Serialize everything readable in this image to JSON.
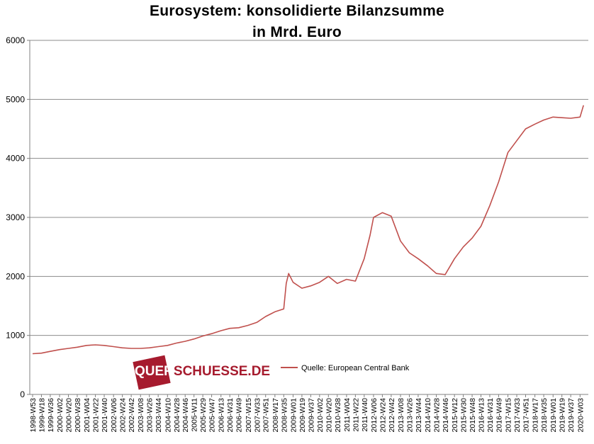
{
  "chart_data": {
    "type": "line",
    "title": "Eurosystem: konsolidierte Bilanzsumme",
    "subtitle": "in Mrd. Euro",
    "xlabel": "",
    "ylabel": "",
    "ylim": [
      0,
      6000
    ],
    "yticks": [
      0,
      1000,
      2000,
      3000,
      4000,
      5000,
      6000
    ],
    "grid": "horizontal",
    "legend_placement": "bottom-center",
    "x_ticks": [
      "1998-W53",
      "1999-W18",
      "1999-W36",
      "2000-W02",
      "2000-W20",
      "2000-W38",
      "2001-W04",
      "2001-W22",
      "2001-W40",
      "2002-W06",
      "2002-W24",
      "2002-W42",
      "2003-W08",
      "2003-W26",
      "2003-W44",
      "2004-W10",
      "2004-W28",
      "2004-W46",
      "2005-W11",
      "2005-W29",
      "2005-W47",
      "2006-W13",
      "2006-W31",
      "2006-W49",
      "2007-W15",
      "2007-W33",
      "2007-W51",
      "2008-W17",
      "2008-W35",
      "2009-W01",
      "2009-W19",
      "2009-W37",
      "2010-W02",
      "2010-W20",
      "2010-W38",
      "2011-W04",
      "2011-W22",
      "2011-W40",
      "2012-W06",
      "2012-W24",
      "2012-W42",
      "2013-W08",
      "2013-W26",
      "2013-W44",
      "2014-W10",
      "2014-W28",
      "2014-W46",
      "2015-W12",
      "2015-W30",
      "2015-W48",
      "2016-W13",
      "2016-W31",
      "2016-W49",
      "2017-W15",
      "2017-W33",
      "2017-W51",
      "2018-W17",
      "2018-W35",
      "2019-W01",
      "2019-W19",
      "2019-W37",
      "2020-W03"
    ],
    "series": [
      {
        "name": "Quelle: European Central Bank",
        "color": "#c0504d",
        "x": [
          "1998-W53",
          "1999-W18",
          "1999-W36",
          "2000-W02",
          "2000-W20",
          "2000-W38",
          "2001-W04",
          "2001-W22",
          "2001-W40",
          "2002-W06",
          "2002-W24",
          "2002-W42",
          "2003-W08",
          "2003-W26",
          "2003-W44",
          "2004-W10",
          "2004-W28",
          "2004-W46",
          "2005-W11",
          "2005-W29",
          "2005-W47",
          "2006-W13",
          "2006-W31",
          "2006-W49",
          "2007-W15",
          "2007-W33",
          "2007-W51",
          "2008-W17",
          "2008-W35",
          "2008-W40",
          "2008-W45",
          "2009-W01",
          "2009-W19",
          "2009-W37",
          "2010-W02",
          "2010-W20",
          "2010-W38",
          "2011-W04",
          "2011-W22",
          "2011-W40",
          "2011-W52",
          "2012-W06",
          "2012-W24",
          "2012-W42",
          "2013-W08",
          "2013-W26",
          "2013-W44",
          "2014-W10",
          "2014-W28",
          "2014-W46",
          "2015-W12",
          "2015-W30",
          "2015-W48",
          "2016-W13",
          "2016-W31",
          "2016-W49",
          "2017-W15",
          "2017-W33",
          "2017-W51",
          "2018-W17",
          "2018-W35",
          "2019-W01",
          "2019-W19",
          "2019-W37",
          "2020-W03",
          "2020-W10"
        ],
        "values": [
          690,
          700,
          730,
          760,
          780,
          800,
          830,
          840,
          830,
          810,
          790,
          780,
          780,
          790,
          810,
          830,
          870,
          900,
          940,
          990,
          1030,
          1080,
          1120,
          1130,
          1170,
          1220,
          1320,
          1400,
          1450,
          1880,
          2050,
          1900,
          1800,
          1840,
          1900,
          2000,
          1880,
          1950,
          1920,
          2300,
          2700,
          3000,
          3080,
          3020,
          2600,
          2400,
          2300,
          2180,
          2050,
          2030,
          2300,
          2500,
          2650,
          2850,
          3200,
          3600,
          4100,
          4300,
          4500,
          4580,
          4650,
          4700,
          4690,
          4680,
          4700,
          4900
        ]
      }
    ],
    "watermark_text": "QUERSCHUESSE.DE"
  }
}
